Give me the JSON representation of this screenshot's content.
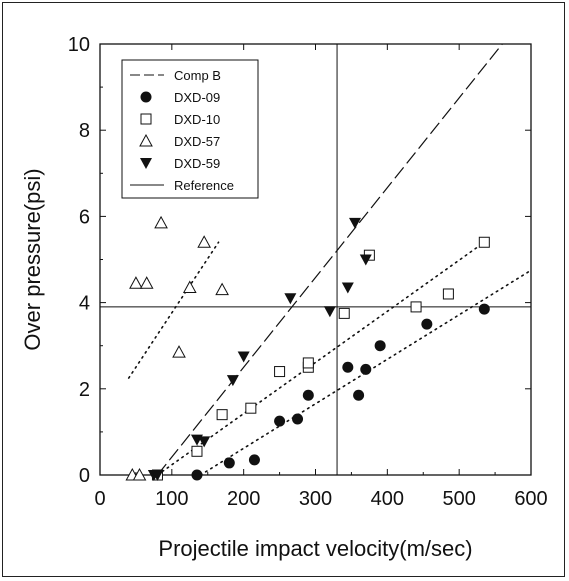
{
  "chart_data": {
    "type": "scatter",
    "xlabel": "Projectile impact velocity(m/sec)",
    "ylabel": "Over pressure(psi)",
    "xlim": [
      0,
      600
    ],
    "ylim": [
      0,
      10
    ],
    "xticks": [
      "0",
      "100",
      "200",
      "300",
      "400",
      "500",
      "600"
    ],
    "yticks": [
      "0",
      "2",
      "4",
      "6",
      "8",
      "10"
    ],
    "grid": false,
    "legend_position": "top-left",
    "reference": {
      "x": 330,
      "y": 3.9
    },
    "series": [
      {
        "name": "Comp B",
        "marker": "dash-line",
        "points": [
          [
            80,
            0
          ],
          [
            560,
            10
          ]
        ]
      },
      {
        "name": "DXD-09",
        "marker": "filled-circle",
        "points": [
          [
            135,
            0
          ],
          [
            180,
            0.28
          ],
          [
            215,
            0.35
          ],
          [
            250,
            1.25
          ],
          [
            275,
            1.3
          ],
          [
            290,
            1.85
          ],
          [
            345,
            2.5
          ],
          [
            360,
            1.85
          ],
          [
            370,
            2.45
          ],
          [
            390,
            3.0
          ],
          [
            455,
            3.5
          ],
          [
            535,
            3.85
          ]
        ],
        "fit": [
          [
            140,
            0
          ],
          [
            600,
            4.75
          ]
        ]
      },
      {
        "name": "DXD-10",
        "marker": "open-square",
        "points": [
          [
            80,
            0
          ],
          [
            135,
            0.55
          ],
          [
            170,
            1.4
          ],
          [
            210,
            1.55
          ],
          [
            250,
            2.4
          ],
          [
            290,
            2.5
          ],
          [
            290,
            2.6
          ],
          [
            340,
            3.75
          ],
          [
            375,
            5.1
          ],
          [
            440,
            3.9
          ],
          [
            485,
            4.2
          ],
          [
            535,
            5.4
          ]
        ],
        "fit": [
          [
            80,
            0
          ],
          [
            535,
            5.4
          ]
        ]
      },
      {
        "name": "DXD-57",
        "marker": "open-triangle",
        "points": [
          [
            45,
            0
          ],
          [
            55,
            0
          ],
          [
            50,
            4.45
          ],
          [
            65,
            4.45
          ],
          [
            85,
            5.85
          ],
          [
            110,
            2.85
          ],
          [
            125,
            4.35
          ],
          [
            145,
            5.4
          ],
          [
            170,
            4.3
          ]
        ],
        "fit": [
          [
            40,
            2.25
          ],
          [
            165,
            5.4
          ]
        ]
      },
      {
        "name": "DXD-59",
        "marker": "filled-down-triangle",
        "points": [
          [
            75,
            0
          ],
          [
            80,
            0
          ],
          [
            135,
            0.82
          ],
          [
            145,
            0.78
          ],
          [
            185,
            2.2
          ],
          [
            200,
            2.75
          ],
          [
            265,
            4.1
          ],
          [
            320,
            3.8
          ],
          [
            345,
            4.35
          ],
          [
            355,
            5.85
          ],
          [
            370,
            5.0
          ]
        ]
      },
      {
        "name": "Reference",
        "marker": "solid-line",
        "points": []
      }
    ]
  }
}
